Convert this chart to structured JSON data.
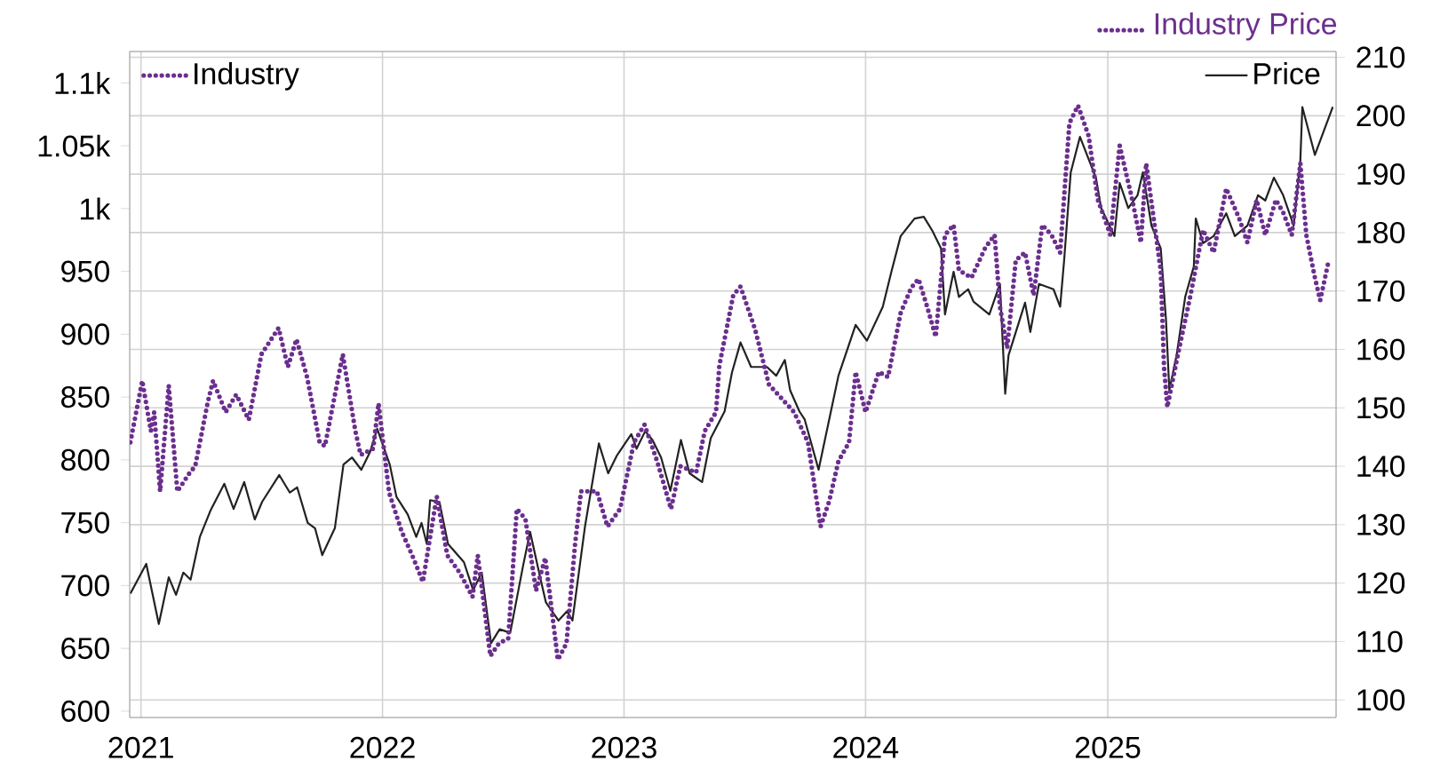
{
  "chart_data": {
    "type": "line",
    "annotations": [
      "Industry Price"
    ],
    "xlim": [
      "2020-12-15",
      "2025-12-12"
    ],
    "xticks": [
      {
        "value": "2021-01-01",
        "label": "2021"
      },
      {
        "value": "2022-01-01",
        "label": "2022"
      },
      {
        "value": "2023-01-01",
        "label": "2023"
      },
      {
        "value": "2024-01-01",
        "label": "2024"
      },
      {
        "value": "2025-01-01",
        "label": "2025"
      }
    ],
    "ylim": [
      595,
      1125
    ],
    "yticks": [
      600,
      650,
      700,
      750,
      800,
      850,
      900,
      950,
      {
        "value": 1000,
        "label": "1k"
      },
      {
        "value": 1050,
        "label": "1.05k"
      },
      {
        "value": 1100,
        "label": "1.1k"
      }
    ],
    "y2lim": [
      97,
      211
    ],
    "y2ticks": [
      100,
      110,
      120,
      130,
      140,
      150,
      160,
      170,
      180,
      190,
      200,
      210
    ],
    "grid": true,
    "legend": "top",
    "series": [
      {
        "name": "Industry",
        "color": "#6b2f8e",
        "line_style": "dotted",
        "x": [
          "2020-12-16",
          "2021-01-03",
          "2021-01-16",
          "2021-01-21",
          "2021-01-30",
          "2021-02-12",
          "2021-02-25",
          "2021-03-16",
          "2021-03-24",
          "2021-04-12",
          "2021-04-20",
          "2021-05-09",
          "2021-05-25",
          "2021-06-13",
          "2021-07-02",
          "2021-07-28",
          "2021-08-11",
          "2021-08-24",
          "2021-09-09",
          "2021-09-28",
          "2021-10-06",
          "2021-11-02",
          "2021-11-21",
          "2021-11-29",
          "2021-12-18",
          "2021-12-26",
          "2022-01-11",
          "2022-01-30",
          "2022-02-15",
          "2022-03-03",
          "2022-03-24",
          "2022-04-09",
          "2022-04-28",
          "2022-05-17",
          "2022-05-25",
          "2022-06-13",
          "2022-06-26",
          "2022-07-10",
          "2022-07-23",
          "2022-08-05",
          "2022-08-21",
          "2022-09-04",
          "2022-09-23",
          "2022-10-06",
          "2022-10-19",
          "2022-10-28",
          "2022-11-21",
          "2022-12-07",
          "2022-12-26",
          "2023-01-16",
          "2023-02-01",
          "2023-02-20",
          "2023-03-13",
          "2023-03-27",
          "2023-04-20",
          "2023-05-03",
          "2023-05-20",
          "2023-05-25",
          "2023-06-15",
          "2023-06-26",
          "2023-07-18",
          "2023-08-08",
          "2023-09-15",
          "2023-10-06",
          "2023-10-25",
          "2023-11-07",
          "2023-11-21",
          "2023-12-07",
          "2023-12-17",
          "2024-01-01",
          "2024-01-21",
          "2024-02-04",
          "2024-02-23",
          "2024-03-10",
          "2024-03-21",
          "2024-04-03",
          "2024-04-16",
          "2024-04-30",
          "2024-05-13",
          "2024-05-21",
          "2024-06-09",
          "2024-06-30",
          "2024-07-14",
          "2024-07-22",
          "2024-08-02",
          "2024-08-15",
          "2024-08-29",
          "2024-09-11",
          "2024-09-24",
          "2024-10-08",
          "2024-10-21",
          "2024-11-04",
          "2024-11-17",
          "2024-12-03",
          "2024-12-17",
          "2025-01-05",
          "2025-01-19",
          "2025-02-07",
          "2025-02-20",
          "2025-02-28",
          "2025-03-22",
          "2025-03-27",
          "2025-04-01",
          "2025-04-17",
          "2025-05-06",
          "2025-05-25",
          "2025-06-10",
          "2025-06-29",
          "2025-07-18",
          "2025-07-31",
          "2025-08-14",
          "2025-08-27",
          "2025-09-12",
          "2025-09-23",
          "2025-10-06",
          "2025-10-19",
          "2025-10-28",
          "2025-11-10",
          "2025-11-18",
          "2025-12-01"
        ],
        "values": [
          814,
          863,
          823,
          838,
          775,
          859,
          775,
          790,
          795,
          846,
          863,
          838,
          852,
          832,
          884,
          905,
          874,
          896,
          866,
          814,
          811,
          884,
          823,
          804,
          809,
          845,
          774,
          743,
          724,
          703,
          771,
          724,
          710,
          691,
          724,
          644,
          654,
          658,
          761,
          753,
          696,
          722,
          641,
          654,
          733,
          775,
          775,
          747,
          761,
          814,
          828,
          799,
          761,
          795,
          790,
          823,
          838,
          875,
          931,
          938,
          904,
          860,
          838,
          814,
          747,
          767,
          799,
          814,
          870,
          838,
          870,
          866,
          917,
          937,
          944,
          922,
          898,
          979,
          987,
          951,
          945,
          969,
          979,
          922,
          889,
          959,
          965,
          931,
          987,
          979,
          965,
          1068,
          1082,
          1058,
          1007,
          979,
          1050,
          1007,
          973,
          1036,
          951,
          874,
          842,
          884,
          931,
          983,
          965,
          1016,
          993,
          973,
          1007,
          979,
          1007,
          997,
          979,
          1036,
          979,
          945,
          927,
          959
        ]
      },
      {
        "name": "Price",
        "color": "#222222",
        "line_style": "solid",
        "axis": "y2",
        "x": [
          "2020-12-16",
          "2021-01-09",
          "2021-01-28",
          "2021-02-12",
          "2021-02-23",
          "2021-03-06",
          "2021-03-17",
          "2021-03-31",
          "2021-04-16",
          "2021-05-07",
          "2021-05-21",
          "2021-06-06",
          "2021-06-22",
          "2021-07-03",
          "2021-07-29",
          "2021-08-14",
          "2021-08-25",
          "2021-09-10",
          "2021-09-21",
          "2021-10-02",
          "2021-10-21",
          "2021-11-03",
          "2021-11-16",
          "2021-11-30",
          "2021-12-13",
          "2021-12-24",
          "2022-01-12",
          "2022-01-22",
          "2022-02-08",
          "2022-02-21",
          "2022-03-01",
          "2022-03-09",
          "2022-03-14",
          "2022-03-28",
          "2022-04-10",
          "2022-05-04",
          "2022-05-18",
          "2022-05-31",
          "2022-06-14",
          "2022-06-27",
          "2022-07-13",
          "2022-08-01",
          "2022-08-12",
          "2022-08-28",
          "2022-09-05",
          "2022-09-24",
          "2022-10-07",
          "2022-10-15",
          "2022-11-03",
          "2022-11-24",
          "2022-12-08",
          "2022-12-21",
          "2023-01-12",
          "2023-01-20",
          "2023-02-02",
          "2023-02-13",
          "2023-02-26",
          "2023-03-12",
          "2023-03-28",
          "2023-04-10",
          "2023-04-29",
          "2023-05-12",
          "2023-06-02",
          "2023-06-13",
          "2023-06-26",
          "2023-07-12",
          "2023-08-05",
          "2023-08-19",
          "2023-09-01",
          "2023-09-09",
          "2023-09-23",
          "2023-10-01",
          "2023-10-22",
          "2023-11-07",
          "2023-11-21",
          "2023-12-17",
          "2024-01-03",
          "2024-01-27",
          "2024-02-09",
          "2024-02-23",
          "2024-03-15",
          "2024-03-29",
          "2024-04-11",
          "2024-04-24",
          "2024-04-30",
          "2024-05-13",
          "2024-05-21",
          "2024-06-04",
          "2024-06-12",
          "2024-07-06",
          "2024-07-22",
          "2024-07-30",
          "2024-08-04",
          "2024-08-29",
          "2024-09-06",
          "2024-09-19",
          "2024-10-11",
          "2024-10-21",
          "2024-10-27",
          "2024-11-06",
          "2024-11-20",
          "2024-12-14",
          "2024-12-22",
          "2025-01-11",
          "2025-01-19",
          "2025-02-01",
          "2025-02-15",
          "2025-02-23",
          "2025-03-08",
          "2025-03-22",
          "2025-03-30",
          "2025-04-04",
          "2025-04-15",
          "2025-04-28",
          "2025-05-11",
          "2025-05-14",
          "2025-05-25",
          "2025-06-10",
          "2025-06-29",
          "2025-07-12",
          "2025-07-31",
          "2025-08-16",
          "2025-08-27",
          "2025-09-09",
          "2025-09-23",
          "2025-10-09",
          "2025-10-19",
          "2025-10-22",
          "2025-11-10",
          "2025-12-07"
        ],
        "values": [
          118.2,
          123.3,
          113,
          121,
          118,
          121.8,
          120.6,
          127.9,
          132.4,
          137,
          132.7,
          137.3,
          130.9,
          133.9,
          138.5,
          135.5,
          136.4,
          130.3,
          129.4,
          124.8,
          129.4,
          140.3,
          141.5,
          139.4,
          142.4,
          146.4,
          140.3,
          134.8,
          131.8,
          127.9,
          130.3,
          126.7,
          134.2,
          133.9,
          126.7,
          123.6,
          118.8,
          121.8,
          109.7,
          112.1,
          111.5,
          122.7,
          128.8,
          120.6,
          116.7,
          113.6,
          115.2,
          113.6,
          129.7,
          143.9,
          138.8,
          141.8,
          145.5,
          143,
          146,
          144.5,
          141.5,
          135.8,
          144.5,
          138.8,
          137.3,
          144.8,
          149.4,
          156,
          161.2,
          157,
          157,
          155.5,
          158.2,
          153,
          149.4,
          148,
          139.4,
          148,
          155.5,
          164.2,
          161.5,
          167.3,
          173.3,
          179.4,
          182.4,
          182.7,
          180.3,
          177.3,
          166,
          173.3,
          169,
          170.3,
          168.2,
          166,
          171.2,
          152.4,
          159,
          168,
          163,
          171.2,
          170.3,
          167.3,
          175.2,
          190.3,
          196.4,
          189.4,
          184.2,
          179.4,
          188.5,
          184.2,
          186.4,
          190.3,
          181.2,
          177.3,
          165,
          153,
          159,
          169,
          174.2,
          182.4,
          178.2,
          179.4,
          183.3,
          179.4,
          181.2,
          186.4,
          185.5,
          189.4,
          186.4,
          181.2,
          192.4,
          201.5,
          193.3,
          201.5
        ]
      }
    ]
  }
}
